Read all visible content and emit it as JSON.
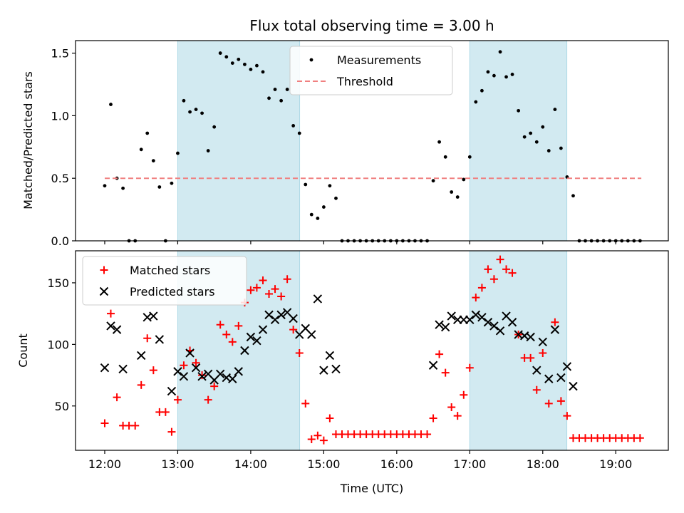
{
  "chart_data": [
    {
      "type": "scatter",
      "title": "Flux total observing time = 3.00 h",
      "xlabel": "",
      "ylabel": "Matched/Predicted stars",
      "xlim": [
        11.6,
        19.72
      ],
      "ylim": [
        0,
        1.6
      ],
      "grid": false,
      "legend_position": "top-center",
      "xticks": [
        {
          "value": 12,
          "label": ""
        },
        {
          "value": 13,
          "label": ""
        },
        {
          "value": 14,
          "label": ""
        },
        {
          "value": 15,
          "label": ""
        },
        {
          "value": 16,
          "label": ""
        },
        {
          "value": 17,
          "label": ""
        },
        {
          "value": 18,
          "label": ""
        },
        {
          "value": 19,
          "label": ""
        }
      ],
      "yticks": [
        {
          "value": 0,
          "label": "0.0"
        },
        {
          "value": 0.5,
          "label": "0.5"
        },
        {
          "value": 1.0,
          "label": "1.0"
        },
        {
          "value": 1.5,
          "label": "1.5"
        }
      ],
      "shaded_regions": [
        {
          "x0": 13.0,
          "x1": 14.67,
          "color": "#add8e6"
        },
        {
          "x0": 17.0,
          "x1": 18.33,
          "color": "#add8e6"
        }
      ],
      "series": [
        {
          "name": "Measurements",
          "marker": "dot",
          "color": "#000000",
          "points": [
            [
              12.0,
              0.44
            ],
            [
              12.083,
              1.09
            ],
            [
              12.167,
              0.5
            ],
            [
              12.25,
              0.42
            ],
            [
              12.333,
              0.0
            ],
            [
              12.417,
              0.0
            ],
            [
              12.5,
              0.73
            ],
            [
              12.583,
              0.86
            ],
            [
              12.667,
              0.64
            ],
            [
              12.75,
              0.43
            ],
            [
              12.833,
              0.0
            ],
            [
              12.917,
              0.46
            ],
            [
              13.0,
              0.7
            ],
            [
              13.083,
              1.12
            ],
            [
              13.167,
              1.03
            ],
            [
              13.25,
              1.05
            ],
            [
              13.333,
              1.02
            ],
            [
              13.417,
              0.72
            ],
            [
              13.5,
              0.91
            ],
            [
              13.583,
              1.5
            ],
            [
              13.667,
              1.47
            ],
            [
              13.75,
              1.42
            ],
            [
              13.833,
              1.45
            ],
            [
              13.917,
              1.41
            ],
            [
              14.0,
              1.37
            ],
            [
              14.083,
              1.4
            ],
            [
              14.167,
              1.35
            ],
            [
              14.25,
              1.14
            ],
            [
              14.333,
              1.21
            ],
            [
              14.417,
              1.12
            ],
            [
              14.5,
              1.21
            ],
            [
              14.583,
              0.92
            ],
            [
              14.667,
              0.86
            ],
            [
              14.75,
              0.45
            ],
            [
              14.833,
              0.21
            ],
            [
              14.917,
              0.18
            ],
            [
              15.0,
              0.27
            ],
            [
              15.083,
              0.44
            ],
            [
              15.167,
              0.34
            ],
            [
              15.25,
              0.0
            ],
            [
              15.333,
              0.0
            ],
            [
              15.417,
              0.0
            ],
            [
              15.5,
              0.0
            ],
            [
              15.583,
              0.0
            ],
            [
              15.667,
              0.0
            ],
            [
              15.75,
              0.0
            ],
            [
              15.833,
              0.0
            ],
            [
              15.917,
              0.0
            ],
            [
              16.0,
              0.0
            ],
            [
              16.083,
              0.0
            ],
            [
              16.167,
              0.0
            ],
            [
              16.25,
              0.0
            ],
            [
              16.333,
              0.0
            ],
            [
              16.417,
              0.0
            ],
            [
              16.5,
              0.48
            ],
            [
              16.583,
              0.79
            ],
            [
              16.667,
              0.67
            ],
            [
              16.75,
              0.39
            ],
            [
              16.833,
              0.35
            ],
            [
              16.917,
              0.49
            ],
            [
              17.0,
              0.67
            ],
            [
              17.083,
              1.11
            ],
            [
              17.167,
              1.2
            ],
            [
              17.25,
              1.35
            ],
            [
              17.333,
              1.32
            ],
            [
              17.417,
              1.51
            ],
            [
              17.5,
              1.31
            ],
            [
              17.583,
              1.33
            ],
            [
              17.667,
              1.04
            ],
            [
              17.75,
              0.83
            ],
            [
              17.833,
              0.86
            ],
            [
              17.917,
              0.79
            ],
            [
              18.0,
              0.91
            ],
            [
              18.083,
              0.72
            ],
            [
              18.167,
              1.05
            ],
            [
              18.25,
              0.74
            ],
            [
              18.333,
              0.51
            ],
            [
              18.417,
              0.36
            ],
            [
              18.5,
              0.0
            ],
            [
              18.583,
              0.0
            ],
            [
              18.667,
              0.0
            ],
            [
              18.75,
              0.0
            ],
            [
              18.833,
              0.0
            ],
            [
              18.917,
              0.0
            ],
            [
              19.0,
              0.0
            ],
            [
              19.083,
              0.0
            ],
            [
              19.167,
              0.0
            ],
            [
              19.25,
              0.0
            ],
            [
              19.333,
              0.0
            ]
          ]
        },
        {
          "name": "Threshold",
          "marker": "dashed-line",
          "color": "#f08080",
          "points": [
            [
              12.0,
              0.5
            ],
            [
              19.35,
              0.5
            ]
          ]
        }
      ]
    },
    {
      "type": "scatter",
      "title": "",
      "xlabel": "Time (UTC)",
      "ylabel": "Count",
      "xlim": [
        11.6,
        19.72
      ],
      "ylim": [
        14,
        176
      ],
      "grid": false,
      "legend_position": "top-left",
      "xticks": [
        {
          "value": 12,
          "label": "12:00"
        },
        {
          "value": 13,
          "label": "13:00"
        },
        {
          "value": 14,
          "label": "14:00"
        },
        {
          "value": 15,
          "label": "15:00"
        },
        {
          "value": 16,
          "label": "16:00"
        },
        {
          "value": 17,
          "label": "17:00"
        },
        {
          "value": 18,
          "label": "18:00"
        },
        {
          "value": 19,
          "label": "19:00"
        }
      ],
      "yticks": [
        {
          "value": 50,
          "label": "50"
        },
        {
          "value": 100,
          "label": "100"
        },
        {
          "value": 150,
          "label": "150"
        }
      ],
      "shaded_regions": [
        {
          "x0": 13.0,
          "x1": 14.67,
          "color": "#add8e6"
        },
        {
          "x0": 17.0,
          "x1": 18.33,
          "color": "#add8e6"
        }
      ],
      "series": [
        {
          "name": "Matched stars",
          "marker": "plus",
          "color": "#ff0000",
          "points": [
            [
              12.0,
              36
            ],
            [
              12.083,
              125
            ],
            [
              12.167,
              57
            ],
            [
              12.25,
              34
            ],
            [
              12.333,
              34
            ],
            [
              12.417,
              34
            ],
            [
              12.5,
              67
            ],
            [
              12.583,
              105
            ],
            [
              12.667,
              79
            ],
            [
              12.75,
              45
            ],
            [
              12.833,
              45
            ],
            [
              12.917,
              29
            ],
            [
              13.0,
              55
            ],
            [
              13.083,
              83
            ],
            [
              13.167,
              95
            ],
            [
              13.25,
              85
            ],
            [
              13.333,
              75
            ],
            [
              13.417,
              55
            ],
            [
              13.5,
              66
            ],
            [
              13.583,
              116
            ],
            [
              13.667,
              108
            ],
            [
              13.75,
              102
            ],
            [
              13.833,
              115
            ],
            [
              13.917,
              134
            ],
            [
              14.0,
              144
            ],
            [
              14.083,
              146
            ],
            [
              14.167,
              152
            ],
            [
              14.25,
              141
            ],
            [
              14.333,
              145
            ],
            [
              14.417,
              139
            ],
            [
              14.5,
              153
            ],
            [
              14.583,
              112
            ],
            [
              14.667,
              93
            ],
            [
              14.75,
              52
            ],
            [
              14.833,
              23
            ],
            [
              14.917,
              26
            ],
            [
              15.0,
              22
            ],
            [
              15.083,
              40
            ],
            [
              15.167,
              27
            ],
            [
              15.25,
              27
            ],
            [
              15.333,
              27
            ],
            [
              15.417,
              27
            ],
            [
              15.5,
              27
            ],
            [
              15.583,
              27
            ],
            [
              15.667,
              27
            ],
            [
              15.75,
              27
            ],
            [
              15.833,
              27
            ],
            [
              15.917,
              27
            ],
            [
              16.0,
              27
            ],
            [
              16.083,
              27
            ],
            [
              16.167,
              27
            ],
            [
              16.25,
              27
            ],
            [
              16.333,
              27
            ],
            [
              16.417,
              27
            ],
            [
              16.5,
              40
            ],
            [
              16.583,
              92
            ],
            [
              16.667,
              77
            ],
            [
              16.75,
              49
            ],
            [
              16.833,
              42
            ],
            [
              16.917,
              59
            ],
            [
              17.0,
              81
            ],
            [
              17.083,
              138
            ],
            [
              17.167,
              146
            ],
            [
              17.25,
              161
            ],
            [
              17.333,
              153
            ],
            [
              17.417,
              169
            ],
            [
              17.5,
              161
            ],
            [
              17.583,
              158
            ],
            [
              17.667,
              108
            ],
            [
              17.75,
              89
            ],
            [
              17.833,
              89
            ],
            [
              17.917,
              63
            ],
            [
              18.0,
              93
            ],
            [
              18.083,
              52
            ],
            [
              18.167,
              118
            ],
            [
              18.25,
              54
            ],
            [
              18.333,
              42
            ],
            [
              18.417,
              24
            ],
            [
              18.5,
              24
            ],
            [
              18.583,
              24
            ],
            [
              18.667,
              24
            ],
            [
              18.75,
              24
            ],
            [
              18.833,
              24
            ],
            [
              18.917,
              24
            ],
            [
              19.0,
              24
            ],
            [
              19.083,
              24
            ],
            [
              19.167,
              24
            ],
            [
              19.25,
              24
            ],
            [
              19.333,
              24
            ]
          ]
        },
        {
          "name": "Predicted stars",
          "marker": "x",
          "color": "#000000",
          "points": [
            [
              12.0,
              81
            ],
            [
              12.083,
              115
            ],
            [
              12.167,
              112
            ],
            [
              12.25,
              80
            ],
            [
              12.5,
              91
            ],
            [
              12.583,
              122
            ],
            [
              12.667,
              123
            ],
            [
              12.75,
              104
            ],
            [
              12.917,
              62
            ],
            [
              13.0,
              78
            ],
            [
              13.083,
              74
            ],
            [
              13.167,
              93
            ],
            [
              13.25,
              81
            ],
            [
              13.333,
              74
            ],
            [
              13.417,
              76
            ],
            [
              13.5,
              71
            ],
            [
              13.583,
              76
            ],
            [
              13.667,
              73
            ],
            [
              13.75,
              72
            ],
            [
              13.833,
              78
            ],
            [
              13.917,
              95
            ],
            [
              14.0,
              106
            ],
            [
              14.083,
              103
            ],
            [
              14.167,
              112
            ],
            [
              14.25,
              124
            ],
            [
              14.333,
              120
            ],
            [
              14.417,
              124
            ],
            [
              14.5,
              126
            ],
            [
              14.583,
              121
            ],
            [
              14.667,
              108
            ],
            [
              14.75,
              113
            ],
            [
              14.833,
              108
            ],
            [
              14.917,
              137
            ],
            [
              15.0,
              79
            ],
            [
              15.083,
              91
            ],
            [
              15.167,
              80
            ],
            [
              16.5,
              83
            ],
            [
              16.583,
              116
            ],
            [
              16.667,
              114
            ],
            [
              16.75,
              123
            ],
            [
              16.833,
              120
            ],
            [
              16.917,
              120
            ],
            [
              17.0,
              120
            ],
            [
              17.083,
              124
            ],
            [
              17.167,
              122
            ],
            [
              17.25,
              118
            ],
            [
              17.333,
              115
            ],
            [
              17.417,
              111
            ],
            [
              17.5,
              123
            ],
            [
              17.583,
              118
            ],
            [
              17.667,
              108
            ],
            [
              17.75,
              107
            ],
            [
              17.833,
              106
            ],
            [
              17.917,
              79
            ],
            [
              18.0,
              102
            ],
            [
              18.083,
              72
            ],
            [
              18.167,
              112
            ],
            [
              18.25,
              73
            ],
            [
              18.333,
              82
            ],
            [
              18.417,
              66
            ]
          ]
        }
      ]
    }
  ]
}
